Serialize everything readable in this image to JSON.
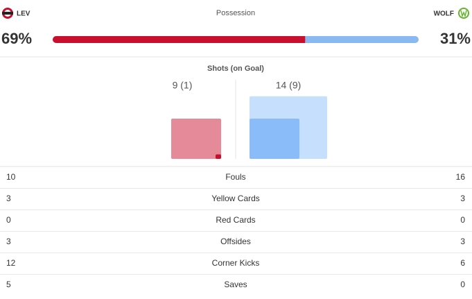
{
  "header": {
    "home_team": "LEV",
    "away_team": "WOLF",
    "title": "Possession"
  },
  "possession": {
    "home": {
      "value": 69,
      "label": "69%"
    },
    "away": {
      "value": 31,
      "label": "31%"
    }
  },
  "shots": {
    "title": "Shots (on Goal)",
    "home": {
      "total": 9,
      "on_goal": 1,
      "label": "9 (1)"
    },
    "away": {
      "total": 14,
      "on_goal": 9,
      "label": "14 (9)"
    }
  },
  "stats": [
    {
      "label": "Fouls",
      "home": "10",
      "away": "16"
    },
    {
      "label": "Yellow Cards",
      "home": "3",
      "away": "3"
    },
    {
      "label": "Red Cards",
      "home": "0",
      "away": "0"
    },
    {
      "label": "Offsides",
      "home": "3",
      "away": "3"
    },
    {
      "label": "Corner Kicks",
      "home": "12",
      "away": "6"
    },
    {
      "label": "Saves",
      "home": "5",
      "away": "0"
    }
  ]
}
